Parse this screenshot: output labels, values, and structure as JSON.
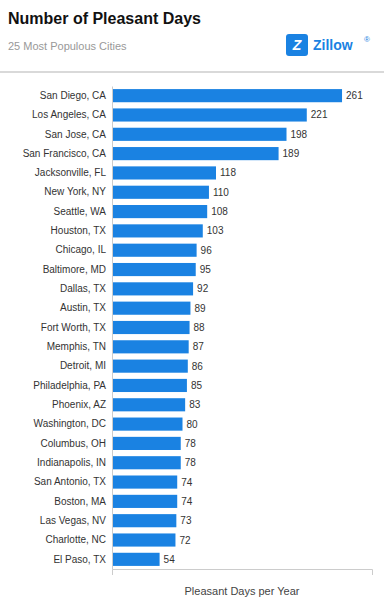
{
  "chart_data": {
    "type": "bar",
    "orientation": "horizontal",
    "title": "Number of Pleasant Days",
    "subtitle": "25 Most Populous Cities",
    "xlabel": "Pleasant Days per Year",
    "annotations": [
      "Z",
      "Zillow",
      "®"
    ],
    "categories": [
      "San Diego, CA",
      "Los Angeles, CA",
      "San Jose, CA",
      "San Francisco, CA",
      "Jacksonville, FL",
      "New York, NY",
      "Seattle, WA",
      "Houston, TX",
      "Chicago, IL",
      "Baltimore, MD",
      "Dallas, TX",
      "Austin, TX",
      "Fort Worth, TX",
      "Memphis, TN",
      "Detroit, MI",
      "Philadelphia, PA",
      "Phoenix, AZ",
      "Washington, DC",
      "Columbus, OH",
      "Indianapolis, IN",
      "San Antonio, TX",
      "Boston, MA",
      "Las Vegas, NV",
      "Charlotte, NC",
      "El Paso, TX"
    ],
    "values": [
      261,
      221,
      198,
      189,
      118,
      110,
      108,
      103,
      96,
      95,
      92,
      89,
      88,
      87,
      86,
      85,
      83,
      80,
      78,
      78,
      74,
      74,
      73,
      72,
      54
    ],
    "color": "#1a82e2",
    "xlim": [
      0,
      295
    ],
    "xticks": [],
    "tick_labels": "y",
    "data_labels": true,
    "grid": false
  }
}
